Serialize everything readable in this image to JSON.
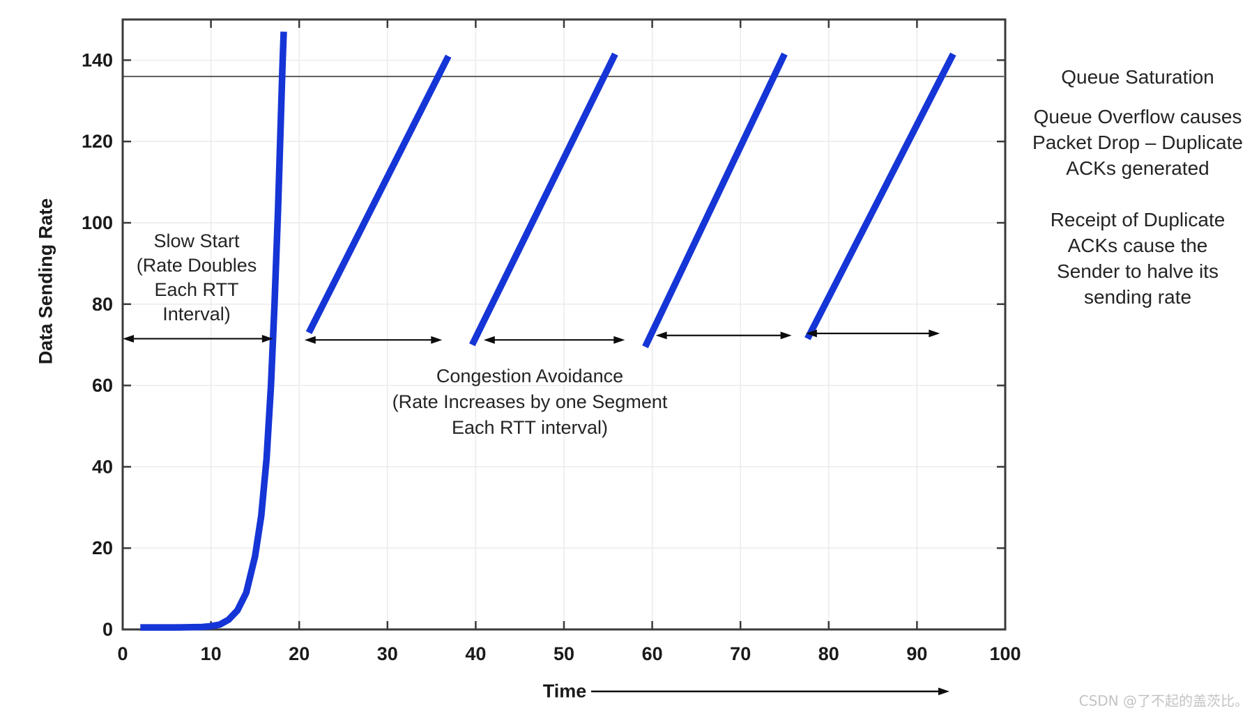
{
  "colors": {
    "series_blue": "#1535d6",
    "spine": "#3a3a3a",
    "grid": "#eaeaea",
    "reference_line": "#454545",
    "arrow": "#0d0d0d",
    "tick_label": "#1a1a1a",
    "watermark": "#c3c3c3"
  },
  "chart_data": {
    "type": "line",
    "title": "",
    "xlabel": "Time",
    "ylabel": "Data Sending Rate",
    "xlim": [
      0,
      100
    ],
    "ylim": [
      0,
      150
    ],
    "x_ticks": [
      0,
      10,
      20,
      30,
      40,
      50,
      60,
      70,
      80,
      90,
      100
    ],
    "y_ticks": [
      0,
      20,
      40,
      60,
      80,
      100,
      120,
      140
    ],
    "grid": true,
    "legend": "none",
    "reference_line": {
      "label": "Queue Saturation",
      "y": 136
    },
    "series": [
      {
        "name": "slow-start-curve",
        "points": [
          [
            2,
            0.5
          ],
          [
            6,
            0.5
          ],
          [
            9,
            0.6
          ],
          [
            10,
            0.8
          ],
          [
            11,
            1.2
          ],
          [
            12,
            2.4
          ],
          [
            13,
            4.7
          ],
          [
            14,
            9
          ],
          [
            15,
            18
          ],
          [
            15.7,
            28
          ],
          [
            16.3,
            42
          ],
          [
            16.8,
            60
          ],
          [
            17.2,
            80
          ],
          [
            17.6,
            103
          ],
          [
            17.9,
            124
          ],
          [
            18.1,
            138
          ],
          [
            18.25,
            147
          ]
        ]
      },
      {
        "name": "congestion-avoidance-tooth-1",
        "points": [
          [
            21.1,
            73
          ],
          [
            36.9,
            141
          ]
        ]
      },
      {
        "name": "congestion-avoidance-tooth-2",
        "points": [
          [
            39.6,
            70
          ],
          [
            55.8,
            141.5
          ]
        ]
      },
      {
        "name": "congestion-avoidance-tooth-3",
        "points": [
          [
            59.2,
            69.5
          ],
          [
            75.0,
            141.5
          ]
        ]
      },
      {
        "name": "congestion-avoidance-tooth-4",
        "points": [
          [
            77.6,
            71.5
          ],
          [
            94.1,
            141.5
          ]
        ]
      }
    ],
    "phase_arrows": [
      {
        "x1": 0,
        "x2": 17.05,
        "y": 71.5
      },
      {
        "x1": 20.6,
        "x2": 36.2,
        "y": 71.2
      },
      {
        "x1": 40.9,
        "x2": 56.9,
        "y": 71.2
      },
      {
        "x1": 60.4,
        "x2": 75.8,
        "y": 72.3
      },
      {
        "x1": 77.4,
        "x2": 92.6,
        "y": 72.8
      }
    ]
  },
  "annotations": {
    "slow_start": {
      "lines": [
        "Slow Start",
        "(Rate Doubles",
        "Each RTT",
        "Interval)"
      ]
    },
    "congestion": {
      "lines": [
        "Congestion Avoidance",
        "(Rate Increases by one Segment",
        "Each RTT interval)"
      ]
    },
    "queue_saturation_note": "Queue Saturation",
    "overflow_note": {
      "lines": [
        "Queue Overflow causes",
        "Packet Drop – Duplicate",
        "ACKs generated"
      ]
    },
    "duplicate_ack_note": {
      "lines": [
        "Receipt of Duplicate",
        "ACKs cause the",
        "Sender to halve its",
        "sending rate"
      ]
    }
  },
  "watermark": "CSDN @了不起的盖茨比。"
}
